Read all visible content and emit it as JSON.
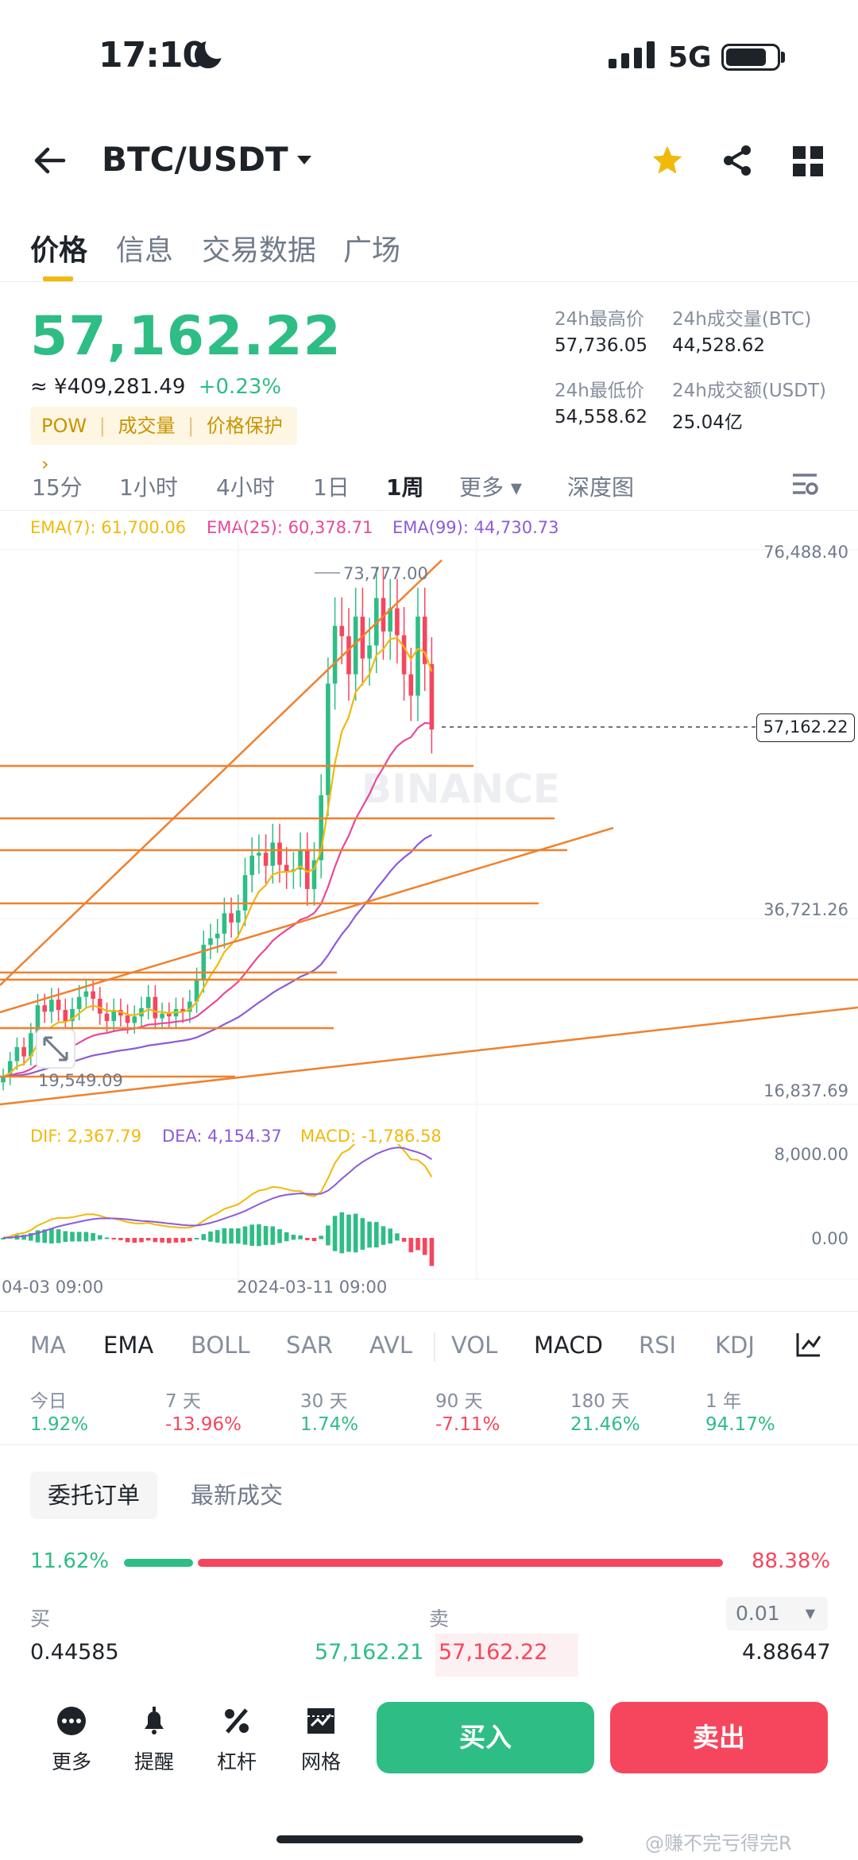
{
  "status_bar": {
    "time": "17:10",
    "network": "5G"
  },
  "header": {
    "pair": "BTC/USDT",
    "icons": [
      "back-arrow-icon",
      "dropdown-caret-icon",
      "star-icon",
      "share-icon",
      "grid-icon"
    ]
  },
  "tabs": [
    {
      "label": "价格",
      "active": true
    },
    {
      "label": "信息",
      "active": false
    },
    {
      "label": "交易数据",
      "active": false
    },
    {
      "label": "广场",
      "active": false
    }
  ],
  "price": {
    "last": "57,162.22",
    "cny": "≈ ¥409,281.49",
    "change": "+0.23%",
    "tags": [
      "POW",
      "成交量",
      "价格保护 ›"
    ]
  },
  "stats": {
    "high_label": "24h最高价",
    "high": "57,736.05",
    "vol_btc_label": "24h成交量(BTC)",
    "vol_btc": "44,528.62",
    "low_label": "24h最低价",
    "low": "54,558.62",
    "vol_usdt_label": "24h成交额(USDT)",
    "vol_usdt": "25.04亿"
  },
  "intervals": [
    {
      "label": "15分",
      "active": false
    },
    {
      "label": "1小时",
      "active": false
    },
    {
      "label": "4小时",
      "active": false
    },
    {
      "label": "1日",
      "active": false
    },
    {
      "label": "1周",
      "active": true
    },
    {
      "label": "更多 ▾",
      "active": false
    },
    {
      "label": "深度图",
      "active": false
    }
  ],
  "chart": {
    "ema7": "EMA(7): 61,700.06",
    "ema25": "EMA(25): 60,378.71",
    "ema99": "EMA(99): 44,730.73",
    "y_top": "76,488.40",
    "y_mid": "36,721.26",
    "y_bot": "16,837.69",
    "high_marker": "73,777.00",
    "low_marker": "19,549.09",
    "last_price_tag": "57,162.22",
    "watermark": "BINANCE",
    "macd_dif": "DIF: 2,367.79",
    "macd_dea": "DEA: 4,154.37",
    "macd_val": "MACD: -1,786.58",
    "macd_y_top": "8,000.00",
    "macd_y_zero": "0.00",
    "x_left": "04-03 09:00",
    "x_mid": "2024-03-11 09:00",
    "colors": {
      "ema7": "#f0b90b",
      "ema25": "#e8479c",
      "ema99": "#8c5bd9",
      "up": "#2ebd85",
      "down": "#f6465d",
      "trend": "#f0802c"
    }
  },
  "chart_data": {
    "type": "candlestick",
    "title": "BTC/USDT",
    "interval": "1周",
    "ylim": [
      16837.69,
      76488.4
    ],
    "last_price": 57162.22,
    "period_high": 73777.0,
    "period_low": 19549.09,
    "series": [
      {
        "name": "EMA(7)",
        "last": 61700.06
      },
      {
        "name": "EMA(25)",
        "last": 60378.71
      },
      {
        "name": "EMA(99)",
        "last": 44730.73
      }
    ],
    "macd": {
      "DIF": 2367.79,
      "DEA": 4154.37,
      "MACD": -1786.58
    },
    "closes": [
      19800,
      21500,
      23000,
      22000,
      24500,
      27500,
      26800,
      28100,
      27000,
      25800,
      27100,
      28400,
      29000,
      28200,
      26600,
      25800,
      27000,
      26400,
      25600,
      26300,
      27200,
      28400,
      26100,
      26600,
      26300,
      27100,
      26800,
      27900,
      30200,
      34000,
      34700,
      35200,
      37400,
      36400,
      37700,
      41500,
      43600,
      43900,
      42500,
      45000,
      42600,
      41900,
      42100,
      44100,
      40000,
      43100,
      50100,
      62100,
      68300,
      67200,
      63100,
      69300,
      64800,
      66200,
      71300,
      67700,
      70200,
      67300,
      63100,
      60800,
      69300,
      64200,
      57162
    ]
  },
  "indicator_tabs": [
    {
      "label": "MA",
      "active": false
    },
    {
      "label": "EMA",
      "active": true
    },
    {
      "label": "BOLL",
      "active": false
    },
    {
      "label": "SAR",
      "active": false
    },
    {
      "label": "AVL",
      "active": false
    },
    {
      "label": "VOL",
      "active": false
    },
    {
      "label": "MACD",
      "active": true
    },
    {
      "label": "RSI",
      "active": false
    },
    {
      "label": "KDJ",
      "active": false
    }
  ],
  "performance": [
    {
      "label": "今日",
      "value": "1.92%",
      "dir": "up"
    },
    {
      "label": "7 天",
      "value": "-13.96%",
      "dir": "down"
    },
    {
      "label": "30 天",
      "value": "1.74%",
      "dir": "up"
    },
    {
      "label": "90 天",
      "value": "-7.11%",
      "dir": "down"
    },
    {
      "label": "180 天",
      "value": "21.46%",
      "dir": "up"
    },
    {
      "label": "1 年",
      "value": "94.17%",
      "dir": "up"
    }
  ],
  "orderbook": {
    "tab_active": "委托订单",
    "tab_other": "最新成交",
    "buy_ratio": "11.62%",
    "sell_ratio": "88.38%",
    "buy_fraction": 0.1162,
    "buy_label": "买",
    "sell_label": "卖",
    "precision": "0.01",
    "bid_qty": "0.44585",
    "bid_price": "57,162.21",
    "ask_price": "57,162.22",
    "ask_qty": "4.88647"
  },
  "bottom_nav": {
    "more": "更多",
    "alert": "提醒",
    "leverage": "杠杆",
    "grid": "网格",
    "buy": "买入",
    "sell": "卖出"
  },
  "watermark_text": "@赚不完亏得完R"
}
